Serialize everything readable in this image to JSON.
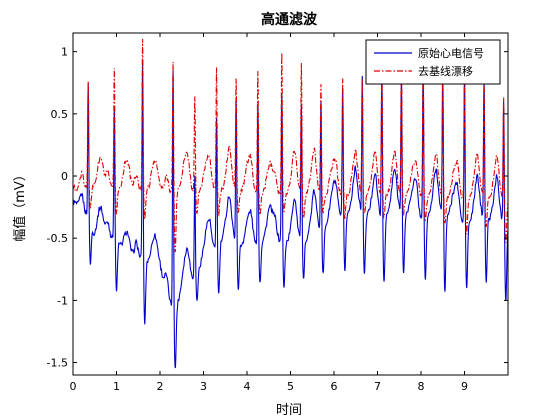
{
  "chart_data": {
    "type": "line",
    "title": "高通滤波",
    "xlabel": "时间",
    "ylabel": "幅值（mV）",
    "xlim": [
      0,
      10
    ],
    "ylim": [
      -1.6,
      1.15
    ],
    "xticks": [
      0,
      1,
      2,
      3,
      4,
      5,
      6,
      7,
      8,
      9
    ],
    "xtick_labels": [
      "0",
      "1",
      "2",
      "3",
      "4",
      "5",
      "6",
      "7",
      "8",
      "9"
    ],
    "yticks": [
      -1.5,
      -1,
      -0.5,
      0,
      0.5,
      1
    ],
    "ytick_labels": [
      "-1.5",
      "-1",
      "-0.5",
      "0",
      "0.5",
      "1"
    ],
    "grid": false,
    "legend_position": "top-right",
    "beats": [
      0.35,
      0.95,
      1.6,
      2.3,
      2.8,
      3.3,
      3.75,
      4.25,
      4.8,
      5.25,
      5.7,
      6.2,
      6.65,
      7.1,
      7.55,
      8.05,
      8.5,
      9.0,
      9.45,
      9.9
    ],
    "series": [
      {
        "name": "原始心电信号",
        "color": "#0000cc",
        "style": "solid",
        "baseline": [
          [
            0,
            -0.2
          ],
          [
            0.3,
            -0.3
          ],
          [
            0.5,
            -0.5
          ],
          [
            1.0,
            -0.5
          ],
          [
            1.2,
            -0.7
          ],
          [
            1.5,
            -0.65
          ],
          [
            2.0,
            -0.75
          ],
          [
            2.3,
            -1.1
          ],
          [
            2.6,
            -0.9
          ],
          [
            3.0,
            -0.7
          ],
          [
            3.5,
            -0.5
          ],
          [
            4.0,
            -0.6
          ],
          [
            4.5,
            -0.5
          ],
          [
            5.0,
            -0.55
          ],
          [
            5.5,
            -0.5
          ],
          [
            6.0,
            -0.35
          ],
          [
            6.5,
            -0.3
          ],
          [
            7.0,
            -0.35
          ],
          [
            7.5,
            -0.3
          ],
          [
            8.0,
            -0.35
          ],
          [
            8.5,
            -0.3
          ],
          [
            9.0,
            -0.4
          ],
          [
            9.5,
            -0.35
          ],
          [
            10.0,
            -0.4
          ]
        ],
        "r_peaks": [
          0.78,
          0.57,
          0.94,
          0.88,
          0.0,
          0.5,
          0.62,
          0.6,
          0.69,
          0.6,
          0.62,
          0.7,
          0.8,
          0.82,
          0.8,
          0.87,
          0.88,
          0.82,
          0.81,
          0.63
        ],
        "s_troughs": [
          -0.7,
          -0.93,
          -1.18,
          -1.56,
          -1.0,
          -0.95,
          -0.9,
          -0.85,
          -0.9,
          -0.85,
          -0.8,
          -0.75,
          -0.8,
          -0.85,
          -0.8,
          -0.85,
          -0.95,
          -0.9,
          -0.85,
          -1.0
        ]
      },
      {
        "name": "去基线漂移",
        "color": "#dd0000",
        "style": "dash-dot",
        "baseline": [
          [
            0,
            -0.1
          ],
          [
            10.0,
            -0.2
          ]
        ],
        "r_peaks": [
          0.78,
          0.89,
          1.13,
          0.92,
          0.63,
          0.9,
          0.78,
          0.83,
          0.98,
          0.89,
          0.71,
          0.79,
          0.79,
          0.92,
          1.01,
          0.99,
          0.85,
          0.95,
          0.79,
          0.62
        ],
        "s_troughs": [
          -0.23,
          -0.3,
          -0.35,
          -0.6,
          -0.3,
          -0.32,
          -0.3,
          -0.32,
          -0.3,
          -0.35,
          -0.3,
          -0.33,
          -0.3,
          -0.35,
          -0.3,
          -0.35,
          -0.4,
          -0.45,
          -0.4,
          -0.55
        ]
      }
    ]
  }
}
